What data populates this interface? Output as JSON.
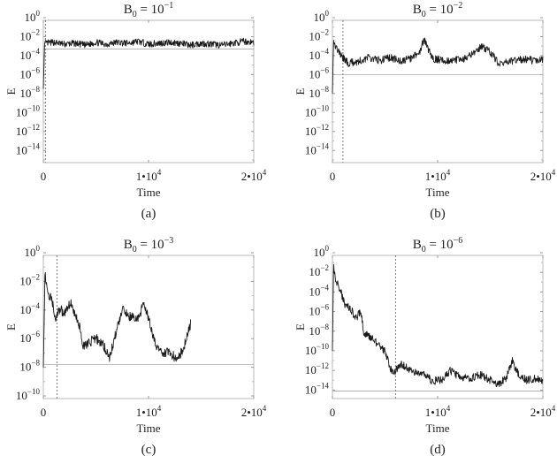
{
  "figure": {
    "panels": [
      {
        "id": "a",
        "caption": "(a)",
        "title_base": "B",
        "title_sub": "0",
        "title_eq": " = 10",
        "title_exp": "−1"
      },
      {
        "id": "b",
        "caption": "(b)",
        "title_base": "B",
        "title_sub": "0",
        "title_eq": " = 10",
        "title_exp": "−2"
      },
      {
        "id": "c",
        "caption": "(c)",
        "title_base": "B",
        "title_sub": "0",
        "title_eq": " = 10",
        "title_exp": "−3"
      },
      {
        "id": "d",
        "caption": "(d)",
        "title_base": "B",
        "title_sub": "0",
        "title_eq": " = 10",
        "title_exp": "−6"
      }
    ]
  },
  "chart_data": [
    {
      "type": "line",
      "title": "B0 = 10^-1",
      "caption": "(a)",
      "xlabel": "Time",
      "ylabel": "E",
      "yscale": "log",
      "xlim": [
        0,
        20000
      ],
      "ylim_exp": [
        -15,
        0
      ],
      "xticks": [
        {
          "v": 0,
          "label": "0"
        },
        {
          "v": 10000,
          "label": "1•10",
          "sup": "4"
        },
        {
          "v": 20000,
          "label": "2•10",
          "sup": "4"
        }
      ],
      "yticks": [
        0,
        -2,
        -4,
        -6,
        -8,
        -10,
        -12,
        -14
      ],
      "vline_x": 200,
      "hline_exp": -3.3,
      "trace_color": "#1a1a1a",
      "series": [
        {
          "name": "E",
          "x": [
            0,
            100,
            200,
            1000,
            2000,
            3000,
            4000,
            5000,
            6000,
            7000,
            8000,
            9000,
            10000,
            11000,
            12000,
            13000,
            14000,
            15000,
            16000,
            17000,
            18000,
            19000,
            20000
          ],
          "log10_y": [
            -7.5,
            -3.0,
            -2.7,
            -2.6,
            -2.8,
            -2.7,
            -2.9,
            -2.6,
            -2.8,
            -2.6,
            -2.7,
            -2.5,
            -2.8,
            -2.7,
            -2.6,
            -2.7,
            -2.9,
            -2.7,
            -2.8,
            -2.9,
            -2.7,
            -2.5,
            -2.6
          ],
          "noise_amp": 0.35
        }
      ]
    },
    {
      "type": "line",
      "title": "B0 = 10^-2",
      "caption": "(b)",
      "xlabel": "Time",
      "ylabel": "E",
      "yscale": "log",
      "xlim": [
        0,
        20000
      ],
      "ylim_exp": [
        -15,
        0
      ],
      "xticks": [
        {
          "v": 0,
          "label": "0"
        },
        {
          "v": 10000,
          "label": "1•10",
          "sup": "4"
        },
        {
          "v": 20000,
          "label": "2•10",
          "sup": "4"
        }
      ],
      "yticks": [
        0,
        -2,
        -4,
        -6,
        -8,
        -10,
        -12,
        -14
      ],
      "vline_x": 1000,
      "hline_exp": -6.0,
      "trace_color": "#1a1a1a",
      "series": [
        {
          "name": "E",
          "x": [
            0,
            100,
            300,
            800,
            1500,
            2500,
            3500,
            4500,
            5500,
            6500,
            7500,
            8300,
            8700,
            9500,
            10500,
            11500,
            12500,
            13500,
            14200,
            15000,
            15800,
            16500,
            17500,
            18500,
            19500,
            20000
          ],
          "log10_y": [
            -8.0,
            -2.3,
            -3.0,
            -4.0,
            -4.8,
            -4.6,
            -4.2,
            -4.5,
            -4.2,
            -4.6,
            -4.3,
            -3.6,
            -2.3,
            -4.3,
            -4.5,
            -4.5,
            -4.4,
            -3.7,
            -3.0,
            -3.6,
            -4.8,
            -4.7,
            -4.5,
            -4.4,
            -4.6,
            -4.4
          ],
          "noise_amp": 0.4
        }
      ]
    },
    {
      "type": "line",
      "title": "B0 = 10^-3",
      "caption": "(c)",
      "xlabel": "Time",
      "ylabel": "E",
      "yscale": "log",
      "xlim": [
        0,
        20000
      ],
      "ylim_exp": [
        -10,
        0
      ],
      "xticks": [
        {
          "v": 0,
          "label": "0"
        },
        {
          "v": 10000,
          "label": "1•10",
          "sup": "4"
        },
        {
          "v": 20000,
          "label": "2•10",
          "sup": "4"
        }
      ],
      "yticks": [
        0,
        -2,
        -4,
        -6,
        -8,
        -10
      ],
      "vline_x": 1300,
      "hline_exp": -7.8,
      "trace_color": "#1a1a1a",
      "series": [
        {
          "name": "E",
          "x": [
            0,
            150,
            400,
            800,
            1200,
            1600,
            2000,
            2600,
            3000,
            3500,
            3800,
            4300,
            5000,
            5600,
            6300,
            6800,
            7500,
            8300,
            9000,
            9600,
            10000,
            10700,
            11500,
            12000,
            12700,
            13300,
            13800,
            14000
          ],
          "log10_y": [
            -8.0,
            -1.5,
            -2.7,
            -3.3,
            -4.6,
            -3.9,
            -4.3,
            -3.4,
            -4.3,
            -5.3,
            -6.6,
            -6.3,
            -6.0,
            -6.3,
            -7.3,
            -5.9,
            -4.0,
            -4.5,
            -4.6,
            -3.5,
            -4.6,
            -6.5,
            -7.0,
            -7.0,
            -7.4,
            -6.8,
            -5.3,
            -5.0
          ],
          "noise_amp": 0.35
        }
      ]
    },
    {
      "type": "line",
      "title": "B0 = 10^-6",
      "caption": "(d)",
      "xlabel": "Time",
      "ylabel": "E",
      "yscale": "log",
      "xlim": [
        0,
        20000
      ],
      "ylim_exp": [
        -14.6,
        0
      ],
      "xticks": [
        {
          "v": 0,
          "label": "0"
        },
        {
          "v": 10000,
          "label": "1•10",
          "sup": "4"
        },
        {
          "v": 20000,
          "label": "2•10",
          "sup": "4"
        }
      ],
      "yticks": [
        0,
        -2,
        -4,
        -6,
        -8,
        -10,
        -12,
        -14
      ],
      "vline_x": 6000,
      "hline_exp": -14.1,
      "trace_color": "#1a1a1a",
      "series": [
        {
          "name": "E",
          "x": [
            0,
            100,
            300,
            700,
            1200,
            1700,
            2200,
            2700,
            3000,
            3300,
            3900,
            4400,
            5000,
            5600,
            6000,
            6500,
            7200,
            8000,
            8800,
            9500,
            10500,
            11200,
            12000,
            13000,
            14000,
            15000,
            15800,
            16500,
            17100,
            17700,
            18500,
            19300,
            20000
          ],
          "log10_y": [
            -10.0,
            -1.5,
            -2.8,
            -3.6,
            -5.4,
            -5.6,
            -6.7,
            -6.0,
            -8.2,
            -8.4,
            -8.8,
            -9.5,
            -10.1,
            -12.0,
            -12.1,
            -11.3,
            -11.8,
            -12.3,
            -12.5,
            -13.1,
            -12.9,
            -12.0,
            -12.6,
            -12.9,
            -12.4,
            -13.0,
            -13.4,
            -12.8,
            -11.0,
            -12.5,
            -13.0,
            -12.8,
            -13.2
          ],
          "noise_amp": 0.4
        }
      ]
    }
  ]
}
